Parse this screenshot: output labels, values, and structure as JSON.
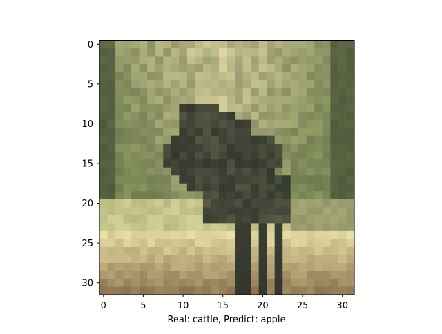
{
  "figure": {
    "xlabel": "Real: cattle, Predict: apple",
    "x_ticks": [
      "0",
      "5",
      "10",
      "15",
      "20",
      "25",
      "30"
    ],
    "y_ticks": [
      "0",
      "5",
      "10",
      "15",
      "20",
      "25",
      "30"
    ]
  },
  "image": {
    "grid_size": 32,
    "subject": "dark animal standing in grass",
    "colors": {
      "background_light": "#e6dca8",
      "foliage": "#8a9660",
      "dark_foliage": "#3c4630",
      "animal": "#30342c",
      "ground_light": "#ece4a8",
      "ground_dark": "#8c7450"
    }
  }
}
